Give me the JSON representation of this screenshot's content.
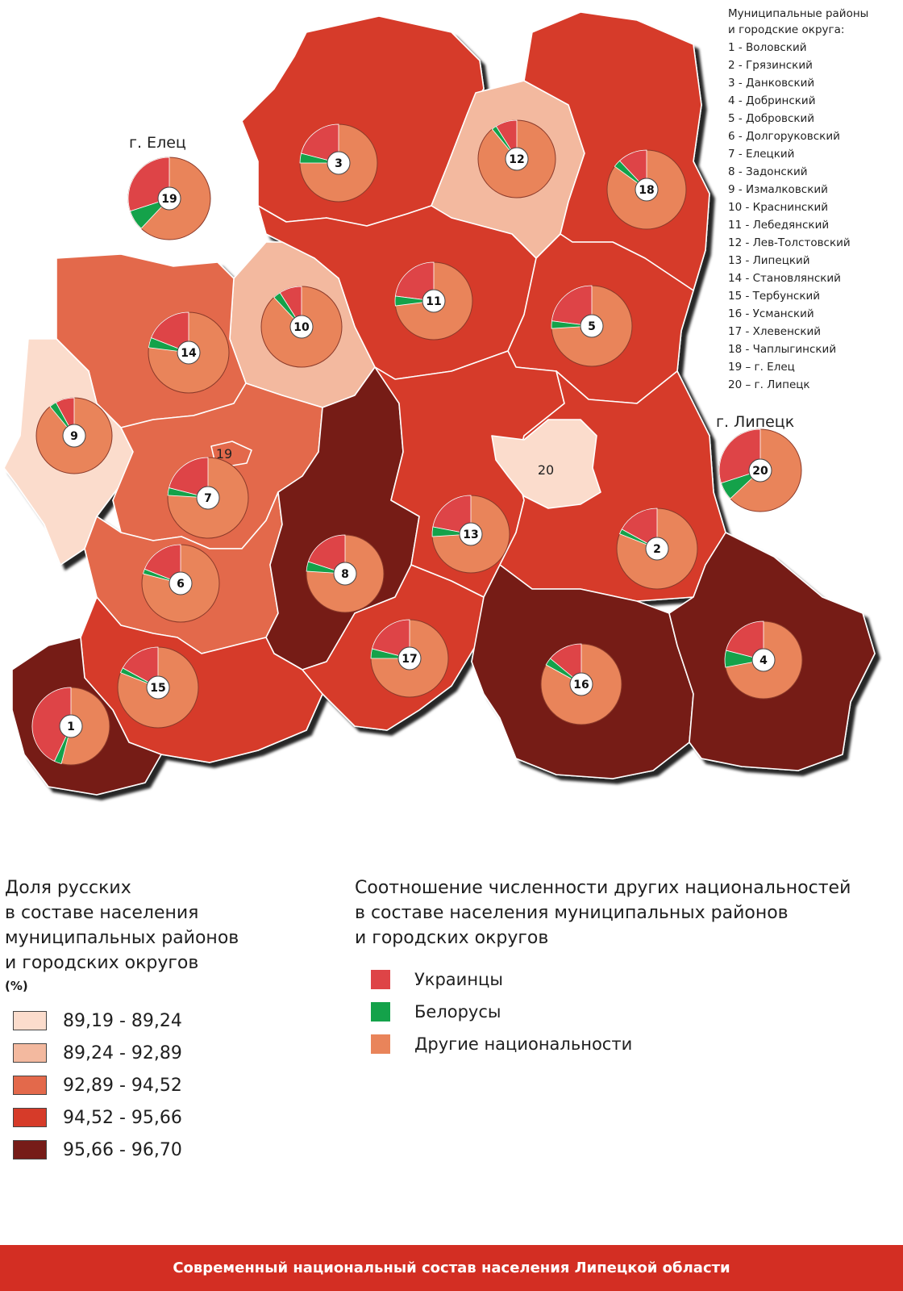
{
  "colors": {
    "class1": "#fbdccc",
    "class2": "#f3b99f",
    "class3": "#e3694b",
    "class4": "#d63b29",
    "class5": "#761c18",
    "ukrainians": "#de4447",
    "belarusians": "#14a24a",
    "others": "#e9845a"
  },
  "district_list": {
    "title_line1": "Муниципальные районы",
    "title_line2": "и городские округа:",
    "items": [
      {
        "num": "1",
        "text": "1 - Воловский"
      },
      {
        "num": "2",
        "text": "2 - Грязинский"
      },
      {
        "num": "3",
        "text": "3 - Данковский"
      },
      {
        "num": "4",
        "text": "4 - Добринский"
      },
      {
        "num": "5",
        "text": "5 - Добровский"
      },
      {
        "num": "6",
        "text": "6 - Долгоруковский"
      },
      {
        "num": "7",
        "text": "7 - Елецкий"
      },
      {
        "num": "8",
        "text": "8 - Задонский"
      },
      {
        "num": "9",
        "text": "9 - Измалковский"
      },
      {
        "num": "10",
        "text": "10 - Краснинский"
      },
      {
        "num": "11",
        "text": "11 - Лебедянский"
      },
      {
        "num": "12",
        "text": "12 - Лев-Толстовский"
      },
      {
        "num": "13",
        "text": "13 - Липецкий"
      },
      {
        "num": "14",
        "text": "14 - Становлянский"
      },
      {
        "num": "15",
        "text": "15 - Тербунский"
      },
      {
        "num": "16",
        "text": "16 - Усманский"
      },
      {
        "num": "17",
        "text": "17 - Хлевенский"
      },
      {
        "num": "18",
        "text": "18 - Чаплыгинский"
      },
      {
        "num": "19",
        "text": "19 – г. Елец"
      },
      {
        "num": "20",
        "text": "20 – г. Липецк"
      }
    ]
  },
  "map": {
    "city_labels": {
      "elets": "г. Елец",
      "lipetsk": "г. Липецк"
    },
    "city_area_labels": {
      "elets": "19",
      "lipetsk": "20"
    },
    "districts": [
      {
        "id": "1",
        "class": "class5"
      },
      {
        "id": "2",
        "class": "class4"
      },
      {
        "id": "3",
        "class": "class4"
      },
      {
        "id": "4",
        "class": "class5"
      },
      {
        "id": "5",
        "class": "class4"
      },
      {
        "id": "6",
        "class": "class3"
      },
      {
        "id": "7",
        "class": "class3"
      },
      {
        "id": "8",
        "class": "class5"
      },
      {
        "id": "9",
        "class": "class1"
      },
      {
        "id": "10",
        "class": "class2"
      },
      {
        "id": "11",
        "class": "class4"
      },
      {
        "id": "12",
        "class": "class2"
      },
      {
        "id": "13",
        "class": "class4"
      },
      {
        "id": "14",
        "class": "class3"
      },
      {
        "id": "15",
        "class": "class4"
      },
      {
        "id": "16",
        "class": "class5"
      },
      {
        "id": "17",
        "class": "class4"
      },
      {
        "id": "18",
        "class": "class4"
      },
      {
        "id": "19",
        "class": "class3"
      },
      {
        "id": "20",
        "class": "class1"
      }
    ],
    "pies": [
      {
        "label": "1",
        "ukr": 0.43,
        "bel": 0.03
      },
      {
        "label": "2",
        "ukr": 0.17,
        "bel": 0.02
      },
      {
        "label": "3",
        "ukr": 0.21,
        "bel": 0.04
      },
      {
        "label": "4",
        "ukr": 0.21,
        "bel": 0.07
      },
      {
        "label": "5",
        "ukr": 0.23,
        "bel": 0.03
      },
      {
        "label": "6",
        "ukr": 0.19,
        "bel": 0.02
      },
      {
        "label": "7",
        "ukr": 0.21,
        "bel": 0.03
      },
      {
        "label": "8",
        "ukr": 0.2,
        "bel": 0.04
      },
      {
        "label": "9",
        "ukr": 0.08,
        "bel": 0.03
      },
      {
        "label": "10",
        "ukr": 0.09,
        "bel": 0.03
      },
      {
        "label": "11",
        "ukr": 0.23,
        "bel": 0.04
      },
      {
        "label": "12",
        "ukr": 0.09,
        "bel": 0.02
      },
      {
        "label": "13",
        "ukr": 0.22,
        "bel": 0.04
      },
      {
        "label": "14",
        "ukr": 0.19,
        "bel": 0.04
      },
      {
        "label": "15",
        "ukr": 0.17,
        "bel": 0.02
      },
      {
        "label": "16",
        "ukr": 0.14,
        "bel": 0.03
      },
      {
        "label": "17",
        "ukr": 0.21,
        "bel": 0.04
      },
      {
        "label": "18",
        "ukr": 0.12,
        "bel": 0.03
      },
      {
        "label": "19",
        "ukr": 0.3,
        "bel": 0.08
      },
      {
        "label": "20",
        "ukr": 0.3,
        "bel": 0.07
      }
    ]
  },
  "legend_share": {
    "title_lines": [
      "Доля русских",
      "в составе населения",
      "муниципальных районов",
      "и городских округов"
    ],
    "unit": "(%)",
    "classes": [
      {
        "key": "class1",
        "label": "89,19 - 89,24"
      },
      {
        "key": "class2",
        "label": "89,24 - 92,89"
      },
      {
        "key": "class3",
        "label": "92,89 - 94,52"
      },
      {
        "key": "class4",
        "label": "94,52 - 95,66"
      },
      {
        "key": "class5",
        "label": "95,66 - 96,70"
      }
    ]
  },
  "legend_nationalities": {
    "title_lines": [
      "Соотношение численности других национальностей",
      "в составе населения муниципальных районов",
      "и городских округов"
    ],
    "items": [
      {
        "key": "ukrainians",
        "label": "Украинцы"
      },
      {
        "key": "belarusians",
        "label": "Белорусы"
      },
      {
        "key": "others",
        "label": "Другие национальности"
      }
    ]
  },
  "footer": {
    "title": "Современный национальный состав населения Липецкой области"
  }
}
